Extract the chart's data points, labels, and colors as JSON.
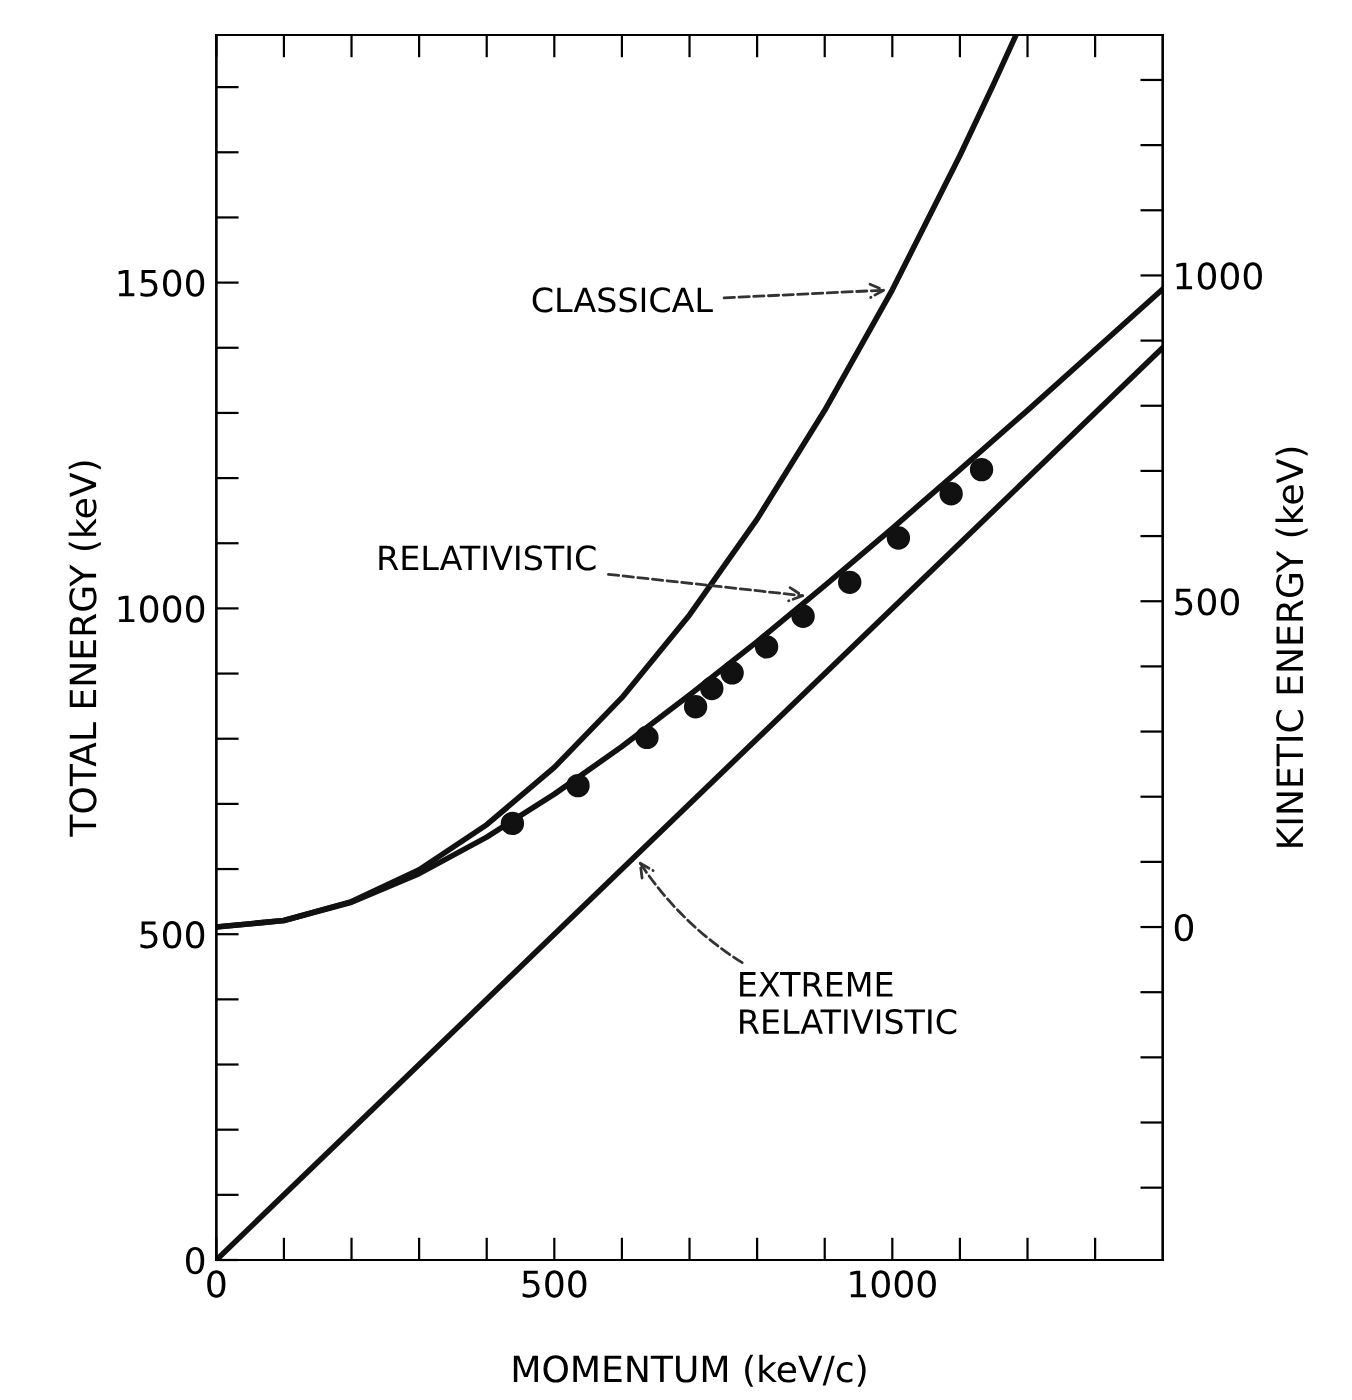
{
  "chart_data": {
    "type": "line",
    "xlabel": "MOMENTUM (keV/c)",
    "ylabel": "TOTAL ENERGY (keV)",
    "y2label": "KINETIC ENERGY (keV)",
    "xlim": [
      0,
      1400
    ],
    "ylim": [
      0,
      1880
    ],
    "y2lim": [
      -511,
      1369
    ],
    "xticks": [
      0,
      {
        "value": 100,
        "label": null
      },
      {
        "value": 200,
        "label": null
      },
      {
        "value": 300,
        "label": null
      },
      {
        "value": 400,
        "label": null
      },
      500,
      {
        "value": 600,
        "label": null
      },
      {
        "value": 700,
        "label": null
      },
      {
        "value": 800,
        "label": null
      },
      {
        "value": 900,
        "label": null
      },
      1000,
      {
        "value": 1100,
        "label": null
      },
      {
        "value": 1200,
        "label": null
      },
      {
        "value": 1300,
        "label": null
      }
    ],
    "yticks": [
      0,
      {
        "value": 100,
        "label": null
      },
      {
        "value": 200,
        "label": null
      },
      {
        "value": 300,
        "label": null
      },
      {
        "value": 400,
        "label": null
      },
      500,
      {
        "value": 600,
        "label": null
      },
      {
        "value": 700,
        "label": null
      },
      {
        "value": 800,
        "label": null
      },
      {
        "value": 900,
        "label": null
      },
      1000,
      {
        "value": 1100,
        "label": null
      },
      {
        "value": 1200,
        "label": null
      },
      {
        "value": 1300,
        "label": null
      },
      {
        "value": 1400,
        "label": null
      },
      1500,
      {
        "value": 1600,
        "label": null
      },
      {
        "value": 1700,
        "label": null
      },
      {
        "value": 1800,
        "label": null
      }
    ],
    "y2ticks": [
      {
        "value": -400,
        "label": null
      },
      {
        "value": -300,
        "label": null
      },
      {
        "value": -200,
        "label": null
      },
      {
        "value": -100,
        "label": null
      },
      0,
      {
        "value": 100,
        "label": null
      },
      {
        "value": 200,
        "label": null
      },
      {
        "value": 300,
        "label": null
      },
      {
        "value": 400,
        "label": null
      },
      500,
      {
        "value": 600,
        "label": null
      },
      {
        "value": 700,
        "label": null
      },
      {
        "value": 800,
        "label": null
      },
      {
        "value": 900,
        "label": null
      },
      1000,
      {
        "value": 1100,
        "label": null
      },
      {
        "value": 1200,
        "label": null
      },
      {
        "value": 1300,
        "label": null
      }
    ],
    "grid": false,
    "legend": false,
    "series": [
      {
        "color": "#111111",
        "x": [
          0,
          100,
          200,
          300,
          400,
          500,
          600,
          700,
          800,
          900,
          1000,
          1100,
          1200,
          1300,
          1400
        ],
        "values": [
          511,
          521,
          549,
          593,
          649,
          715,
          788,
          867,
          949,
          1035,
          1123,
          1213,
          1304,
          1397,
          1490
        ]
      },
      {
        "color": "#111111",
        "x": [
          0,
          100,
          200,
          300,
          400,
          500,
          600,
          700,
          800,
          900,
          1000,
          1100,
          1150,
          1183
        ],
        "values": [
          511,
          521,
          550,
          599,
          668,
          756,
          863,
          990,
          1137,
          1304,
          1489,
          1695,
          1805,
          1880
        ]
      },
      {
        "color": "#111111",
        "x": [
          0,
          1400
        ],
        "values": [
          0,
          1400
        ]
      },
      {
        "type": "scatter",
        "color": "#111111",
        "marker": "circle",
        "x": [
          438,
          535,
          637,
          709,
          733,
          763,
          814,
          868,
          937,
          1009,
          1087,
          1132
        ],
        "values": [
          670,
          728,
          802,
          849,
          877,
          901,
          941,
          988,
          1040,
          1108,
          1176,
          1213
        ]
      }
    ],
    "annotations": [
      {
        "text": "CLASSICAL",
        "x": 1000,
        "y": 1489
      },
      {
        "text": "RELATIVISTIC",
        "x": 880,
        "y": 1018
      },
      {
        "text": "EXTREME\nRELATIVISTIC",
        "x": 620,
        "y": 620
      }
    ]
  }
}
